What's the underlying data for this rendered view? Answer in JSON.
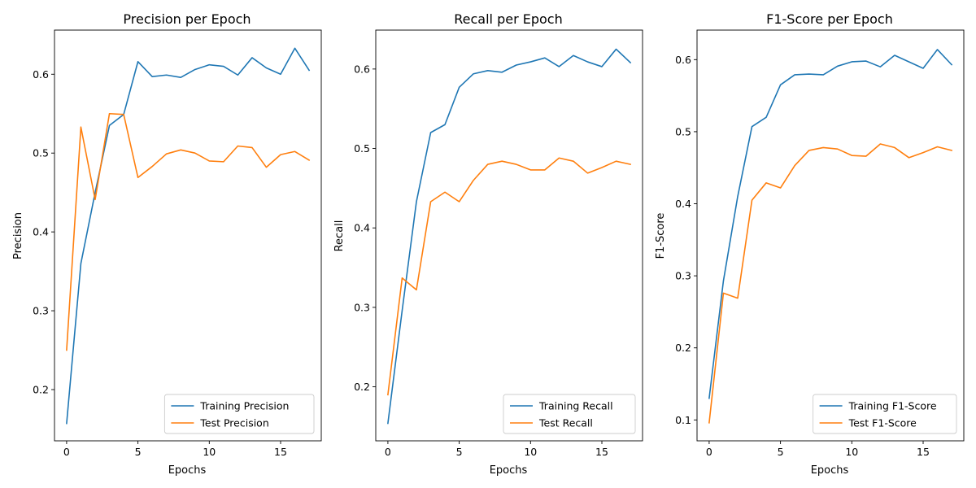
{
  "chart_data": [
    {
      "type": "line",
      "title": "Precision per Epoch",
      "xlabel": "Epochs",
      "ylabel": "Precision",
      "xlim": [
        -0.85,
        17.85
      ],
      "ylim": [
        0.135,
        0.656
      ],
      "xticks": [
        0,
        5,
        10,
        15
      ],
      "yticks": [
        0.2,
        0.3,
        0.4,
        0.5,
        0.6
      ],
      "legend": "lower-right",
      "grid": false,
      "x": [
        0,
        1,
        2,
        3,
        4,
        5,
        6,
        7,
        8,
        9,
        10,
        11,
        12,
        13,
        14,
        15,
        16,
        17
      ],
      "series": [
        {
          "name": "Training Precision",
          "color": "#1f77b4",
          "values": [
            0.157,
            0.36,
            0.45,
            0.535,
            0.549,
            0.616,
            0.597,
            0.599,
            0.596,
            0.606,
            0.612,
            0.61,
            0.599,
            0.621,
            0.608,
            0.6,
            0.633,
            0.605
          ]
        },
        {
          "name": "Test Precision",
          "color": "#ff7f0e",
          "values": [
            0.25,
            0.533,
            0.441,
            0.55,
            0.549,
            0.469,
            0.483,
            0.499,
            0.504,
            0.5,
            0.49,
            0.489,
            0.509,
            0.507,
            0.482,
            0.498,
            0.502,
            0.491
          ]
        }
      ]
    },
    {
      "type": "line",
      "title": "Recall per Epoch",
      "xlabel": "Epochs",
      "ylabel": "Recall",
      "xlim": [
        -0.85,
        17.85
      ],
      "ylim": [
        0.132,
        0.649
      ],
      "xticks": [
        0,
        5,
        10,
        15
      ],
      "yticks": [
        0.2,
        0.3,
        0.4,
        0.5,
        0.6
      ],
      "legend": "lower-right",
      "grid": false,
      "x": [
        0,
        1,
        2,
        3,
        4,
        5,
        6,
        7,
        8,
        9,
        10,
        11,
        12,
        13,
        14,
        15,
        16,
        17
      ],
      "series": [
        {
          "name": "Training Recall",
          "color": "#1f77b4",
          "values": [
            0.154,
            0.296,
            0.433,
            0.52,
            0.53,
            0.577,
            0.594,
            0.598,
            0.596,
            0.605,
            0.609,
            0.614,
            0.603,
            0.617,
            0.609,
            0.603,
            0.625,
            0.608
          ]
        },
        {
          "name": "Test Recall",
          "color": "#ff7f0e",
          "values": [
            0.19,
            0.337,
            0.322,
            0.433,
            0.445,
            0.433,
            0.46,
            0.48,
            0.484,
            0.48,
            0.473,
            0.473,
            0.488,
            0.484,
            0.469,
            0.476,
            0.484,
            0.48
          ]
        }
      ]
    },
    {
      "type": "line",
      "title": "F1-Score per Epoch",
      "xlabel": "Epochs",
      "ylabel": "F1-Score",
      "xlim": [
        -0.85,
        17.85
      ],
      "ylim": [
        0.071,
        0.641
      ],
      "xticks": [
        0,
        5,
        10,
        15
      ],
      "yticks": [
        0.1,
        0.2,
        0.3,
        0.4,
        0.5,
        0.6
      ],
      "legend": "lower-right",
      "grid": false,
      "x": [
        0,
        1,
        2,
        3,
        4,
        5,
        6,
        7,
        8,
        9,
        10,
        11,
        12,
        13,
        14,
        15,
        16,
        17
      ],
      "series": [
        {
          "name": "Training F1-Score",
          "color": "#1f77b4",
          "values": [
            0.13,
            0.293,
            0.41,
            0.507,
            0.52,
            0.565,
            0.579,
            0.58,
            0.579,
            0.591,
            0.597,
            0.598,
            0.59,
            0.606,
            0.597,
            0.588,
            0.614,
            0.593
          ]
        },
        {
          "name": "Test F1-Score",
          "color": "#ff7f0e",
          "values": [
            0.096,
            0.276,
            0.269,
            0.405,
            0.429,
            0.422,
            0.453,
            0.474,
            0.478,
            0.476,
            0.467,
            0.466,
            0.483,
            0.478,
            0.464,
            0.471,
            0.479,
            0.474
          ]
        }
      ]
    }
  ]
}
